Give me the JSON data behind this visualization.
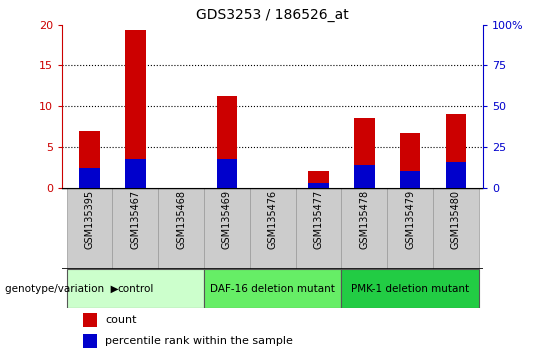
{
  "title": "GDS3253 / 186526_at",
  "samples": [
    "GSM135395",
    "GSM135467",
    "GSM135468",
    "GSM135469",
    "GSM135476",
    "GSM135477",
    "GSM135478",
    "GSM135479",
    "GSM135480"
  ],
  "count_values": [
    7.0,
    19.3,
    0.0,
    11.3,
    0.0,
    2.1,
    8.5,
    6.7,
    9.1
  ],
  "percentile_values": [
    12.0,
    17.5,
    0.0,
    17.5,
    0.0,
    3.0,
    14.0,
    10.0,
    16.0
  ],
  "count_color": "#cc0000",
  "percentile_color": "#0000cc",
  "ylim_left": [
    0,
    20
  ],
  "ylim_right": [
    0,
    100
  ],
  "yticks_left": [
    0,
    5,
    10,
    15,
    20
  ],
  "yticks_right": [
    0,
    25,
    50,
    75,
    100
  ],
  "groups": [
    {
      "label": "control",
      "indices": [
        0,
        1,
        2
      ],
      "color": "#ccffcc"
    },
    {
      "label": "DAF-16 deletion mutant",
      "indices": [
        3,
        4,
        5
      ],
      "color": "#66ee66"
    },
    {
      "label": "PMK-1 deletion mutant",
      "indices": [
        6,
        7,
        8
      ],
      "color": "#22cc44"
    }
  ],
  "group_row_label": "genotype/variation",
  "legend_count": "count",
  "legend_percentile": "percentile rank within the sample",
  "bar_width": 0.45,
  "right_axis_color": "#0000cc",
  "left_axis_color": "#cc0000",
  "label_bg_color": "#cccccc",
  "label_border_color": "#999999"
}
